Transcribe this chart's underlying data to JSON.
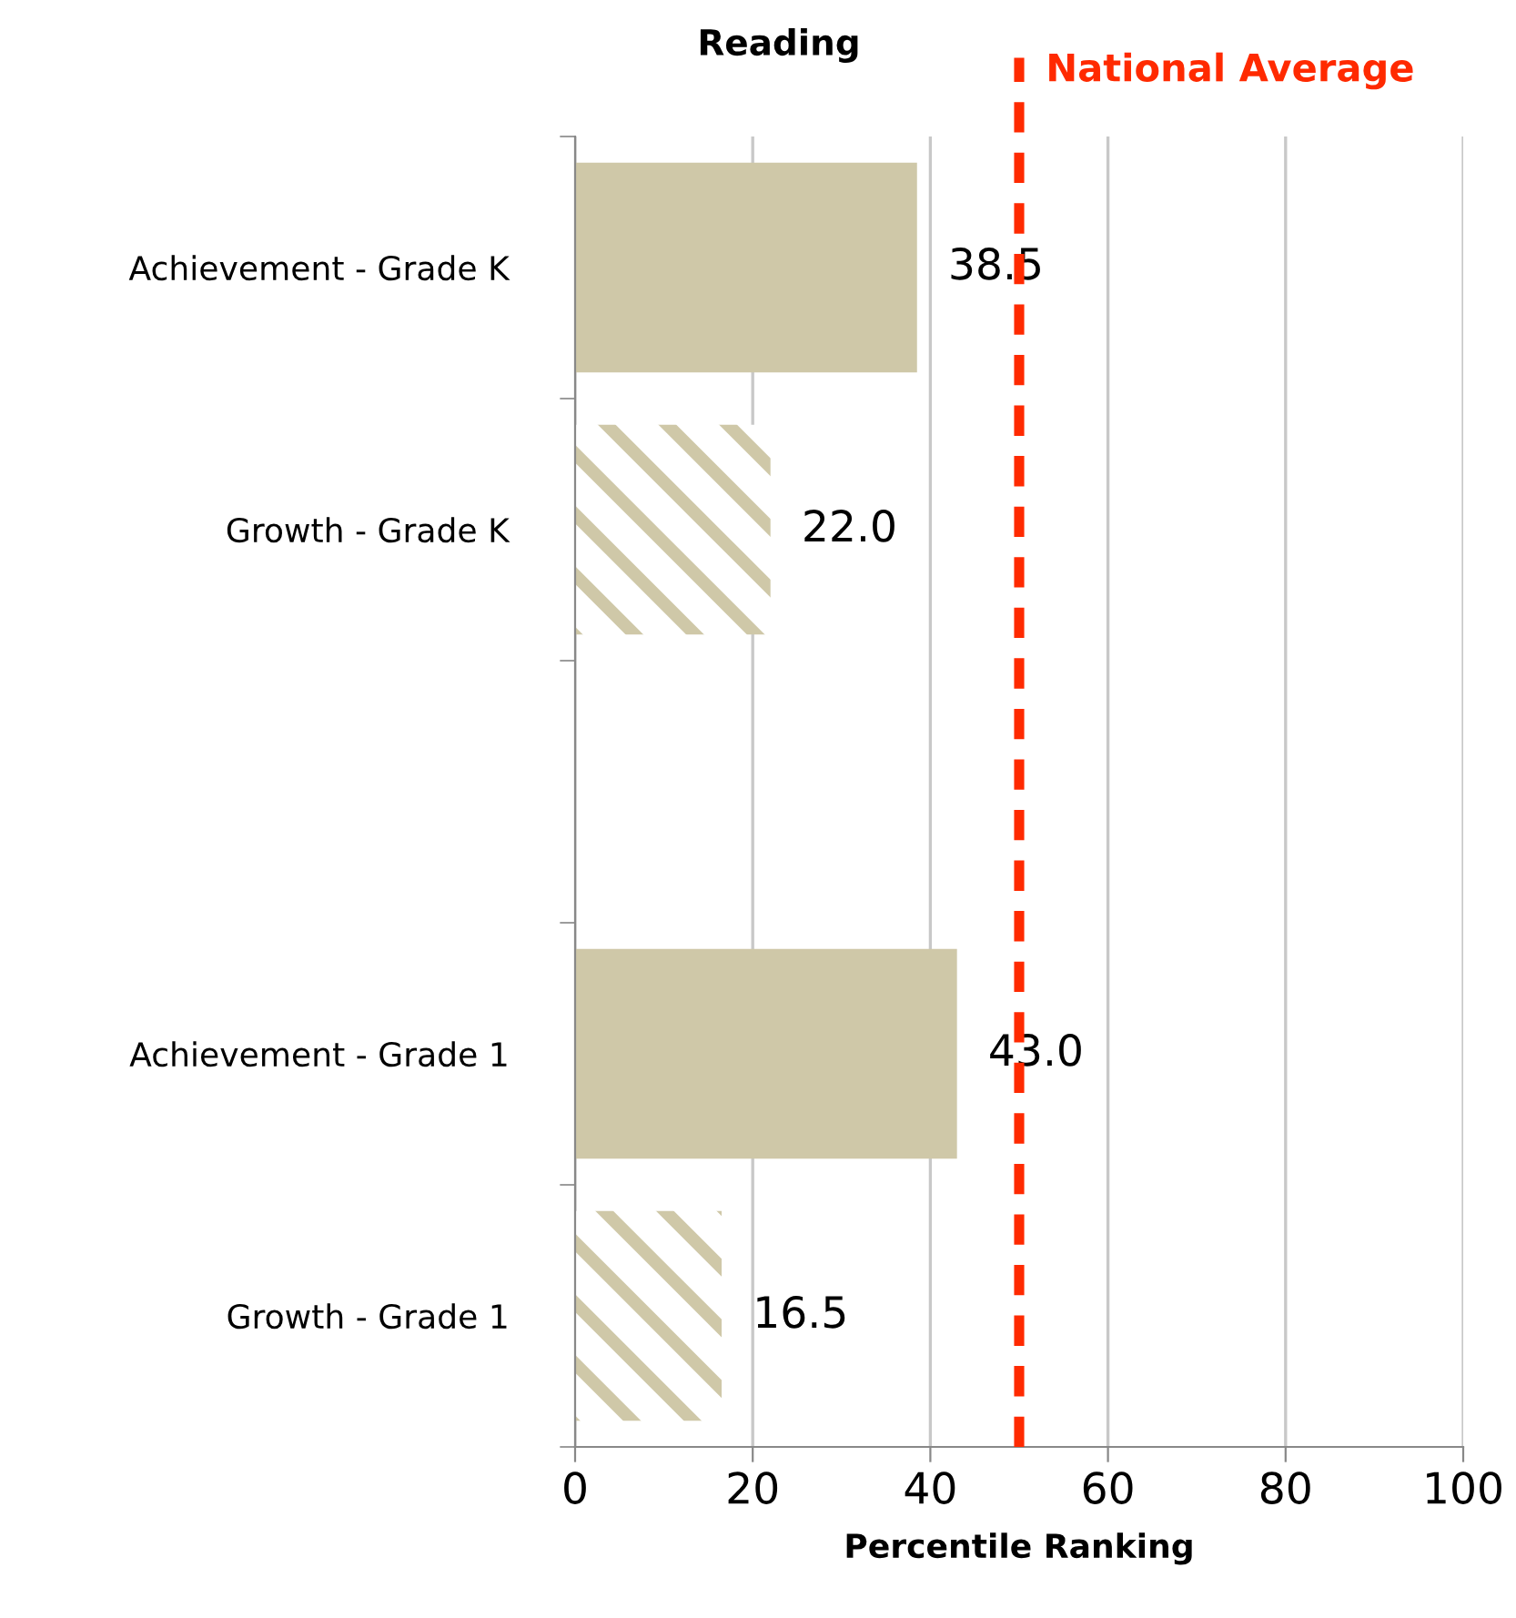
{
  "chart_data": {
    "type": "bar",
    "orientation": "horizontal",
    "title": "Reading",
    "xlabel": "Percentile Ranking",
    "categories": [
      "Achievement - Grade K",
      "Growth - Grade K",
      null,
      "Achievement - Grade 1",
      "Growth - Grade 1"
    ],
    "series": [
      {
        "color": "#cfc8a8",
        "values": [
          38.5,
          null,
          null,
          43.0,
          null
        ],
        "value_labels": [
          "38.5",
          null,
          null,
          "43.0",
          null
        ]
      },
      {
        "color": "#cfc8a8",
        "values": [
          null,
          22.0,
          null,
          null,
          16.5
        ],
        "value_labels": [
          null,
          "22.0",
          null,
          null,
          "16.5"
        ]
      }
    ],
    "xlim": [
      0,
      100
    ],
    "xticks": [
      0,
      20,
      40,
      60,
      80,
      100
    ],
    "grid": "x",
    "legend": false,
    "ref_lines": [
      {
        "axis": "x",
        "value": 50,
        "label": "National Average",
        "color": "#ff2a00",
        "line_style": "dashed"
      }
    ]
  }
}
